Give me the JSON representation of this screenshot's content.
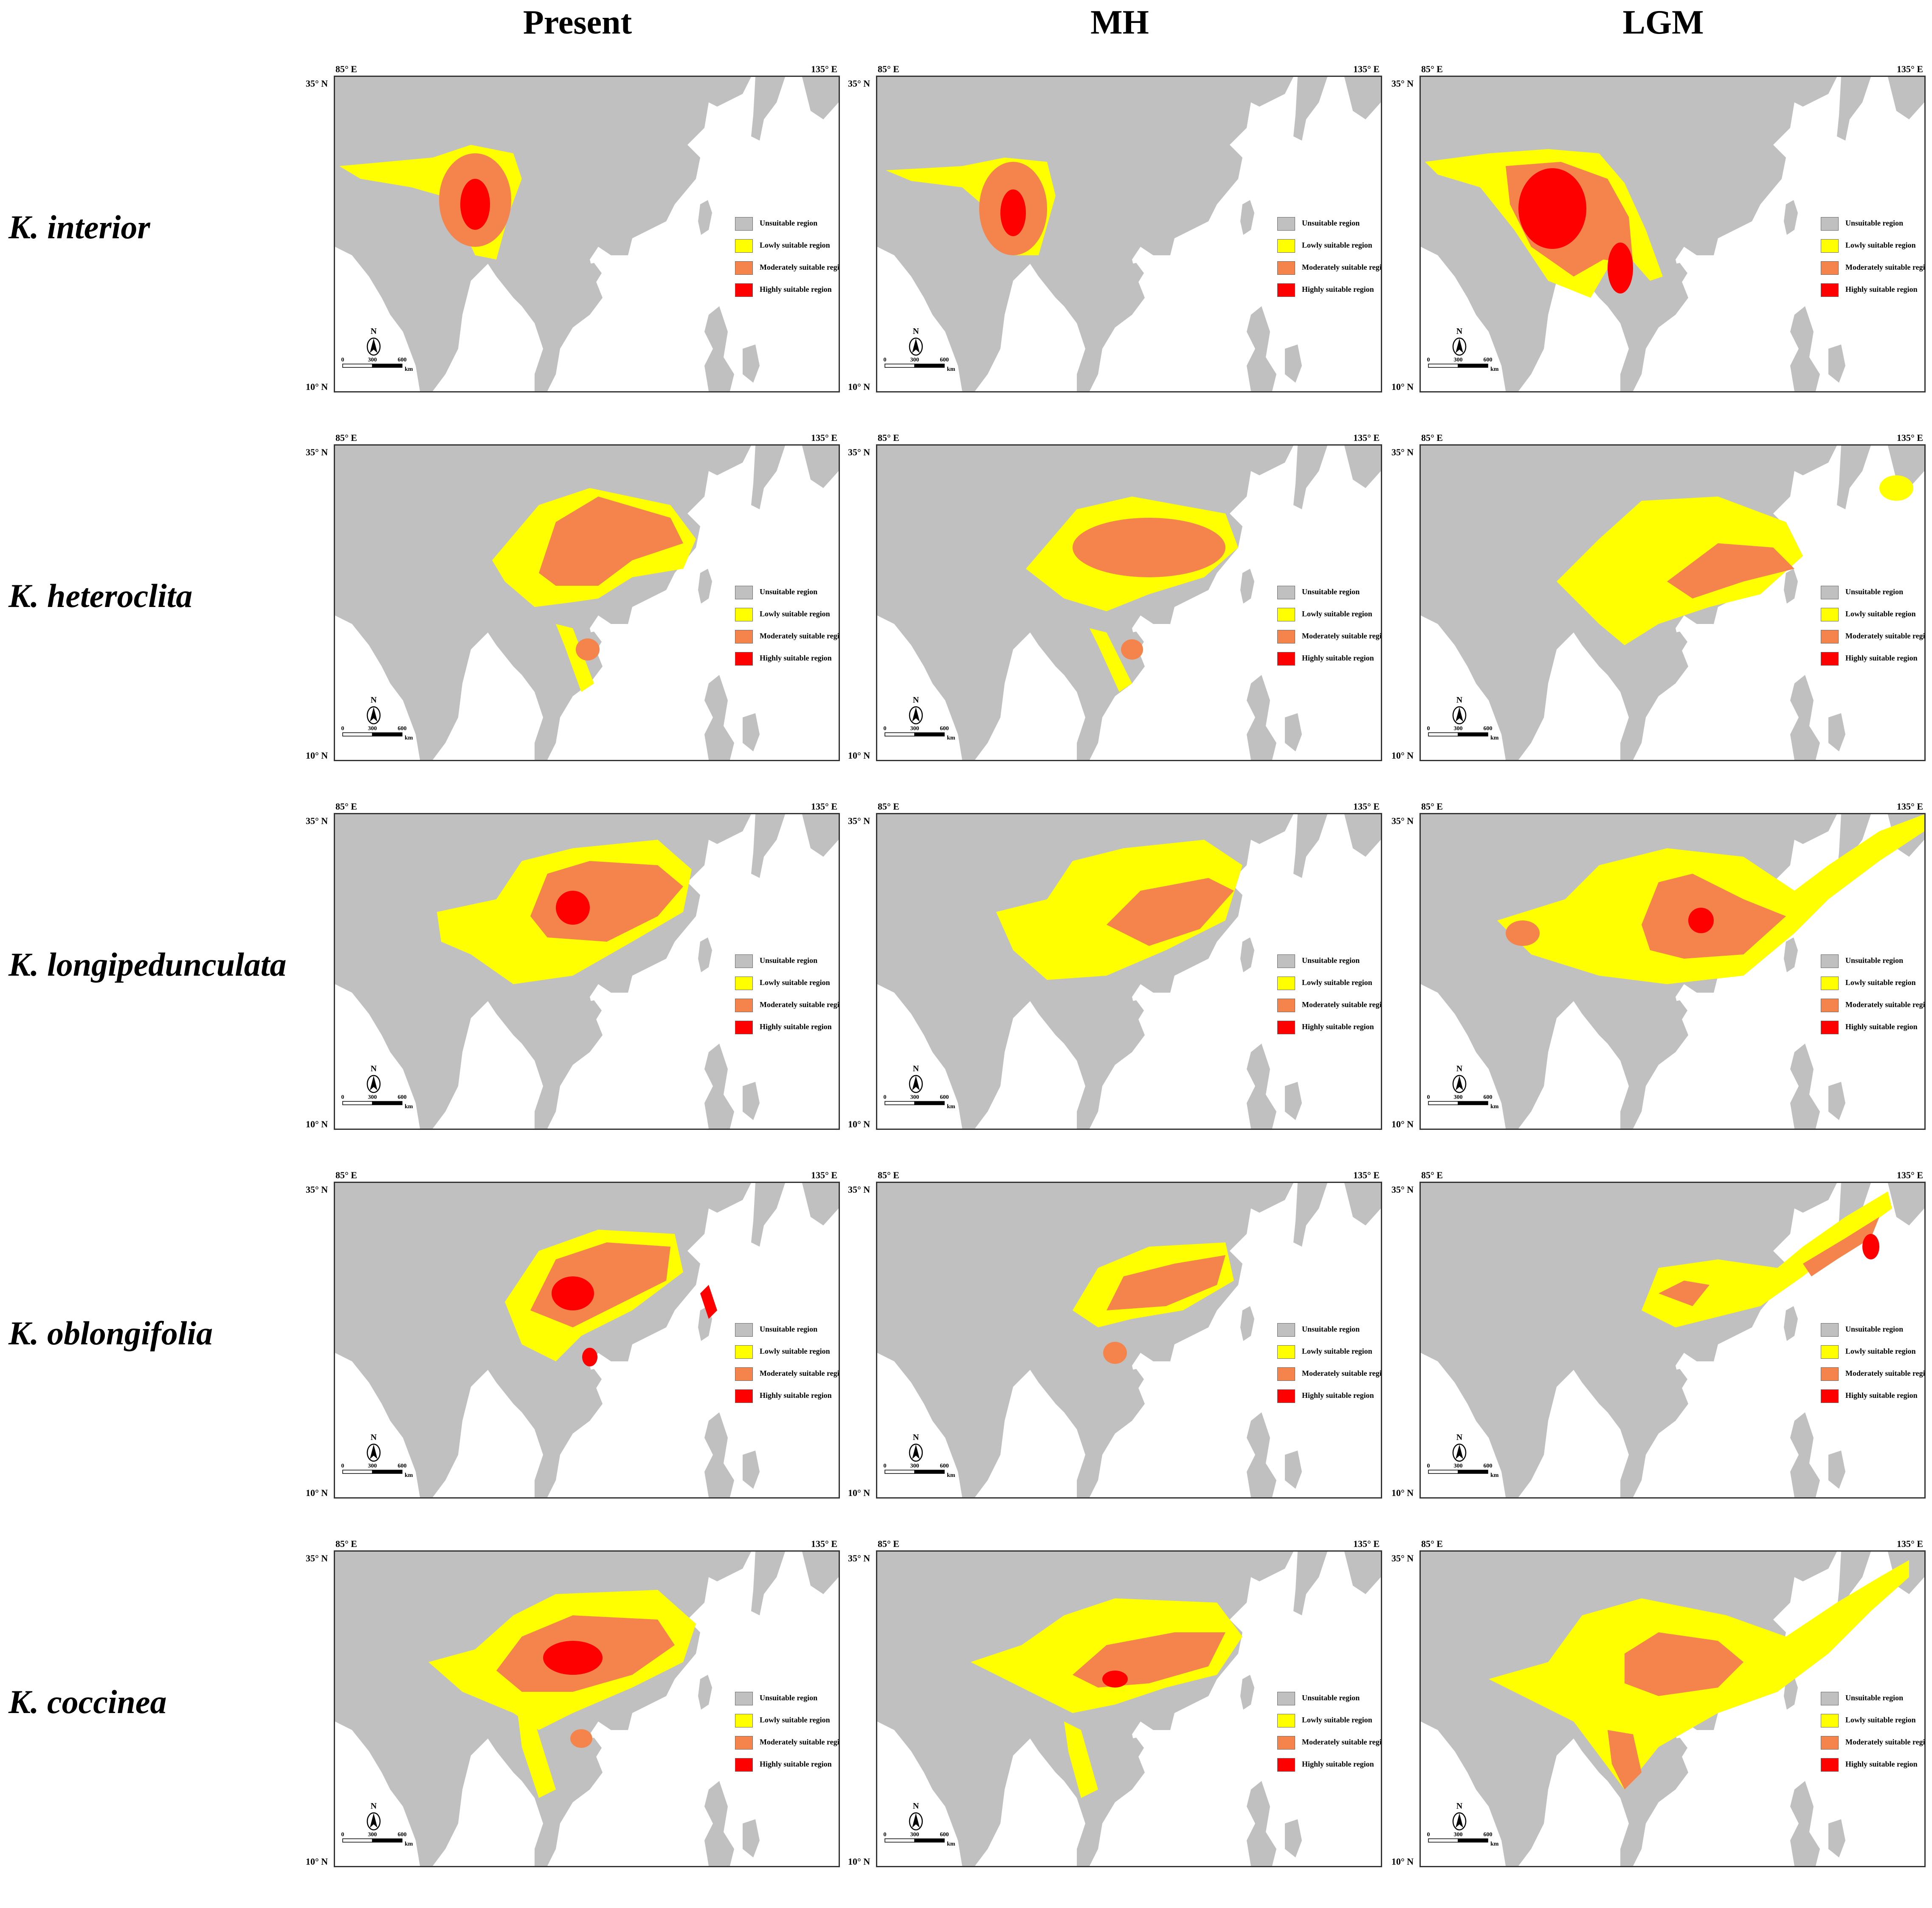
{
  "columns": [
    "Present",
    "MH",
    "LGM"
  ],
  "rows": [
    "K. interior",
    "K. heteroclita",
    "K. longipedunculata",
    "K. oblongifolia",
    "K. coccinea"
  ],
  "axes": {
    "lon_left": "85° E",
    "lon_right": "135° E",
    "lat_top": "35° N",
    "lat_bottom": "10° N"
  },
  "legend": [
    {
      "label": "Unsuitable region",
      "color": "#c0c0c0"
    },
    {
      "label": "Lowly suitable region",
      "color": "#ffff00"
    },
    {
      "label": "Moderately suitable region",
      "color": "#f4844c"
    },
    {
      "label": "Highly suitable region",
      "color": "#ff0000"
    }
  ],
  "north_arrow": "N",
  "scale_bar": {
    "ticks": [
      "0",
      "300",
      "600"
    ],
    "unit": "km"
  },
  "map_colors": {
    "land": "#c0c0c0",
    "sea": "#ffffff",
    "low": "#ffff00",
    "moderate": "#f4844c",
    "high": "#ff0000"
  },
  "suitability_maps": [
    {
      "species": "K. interior",
      "periods": {
        "Present": {
          "low": true,
          "moderate": true,
          "high": true
        },
        "MH": {
          "low": true,
          "moderate": true,
          "high": true
        },
        "LGM": {
          "low": true,
          "moderate": true,
          "high": true
        }
      }
    },
    {
      "species": "K. heteroclita",
      "periods": {
        "Present": {
          "low": true,
          "moderate": true,
          "high": false
        },
        "MH": {
          "low": true,
          "moderate": true,
          "high": false
        },
        "LGM": {
          "low": true,
          "moderate": true,
          "high": false
        }
      }
    },
    {
      "species": "K. longipedunculata",
      "periods": {
        "Present": {
          "low": true,
          "moderate": true,
          "high": true
        },
        "MH": {
          "low": true,
          "moderate": true,
          "high": false
        },
        "LGM": {
          "low": true,
          "moderate": true,
          "high": true
        }
      }
    },
    {
      "species": "K. oblongifolia",
      "periods": {
        "Present": {
          "low": true,
          "moderate": true,
          "high": true
        },
        "MH": {
          "low": true,
          "moderate": true,
          "high": false
        },
        "LGM": {
          "low": true,
          "moderate": true,
          "high": false
        }
      }
    },
    {
      "species": "K. coccinea",
      "periods": {
        "Present": {
          "low": true,
          "moderate": true,
          "high": true
        },
        "MH": {
          "low": true,
          "moderate": true,
          "high": true
        },
        "LGM": {
          "low": true,
          "moderate": true,
          "high": false
        }
      }
    }
  ]
}
